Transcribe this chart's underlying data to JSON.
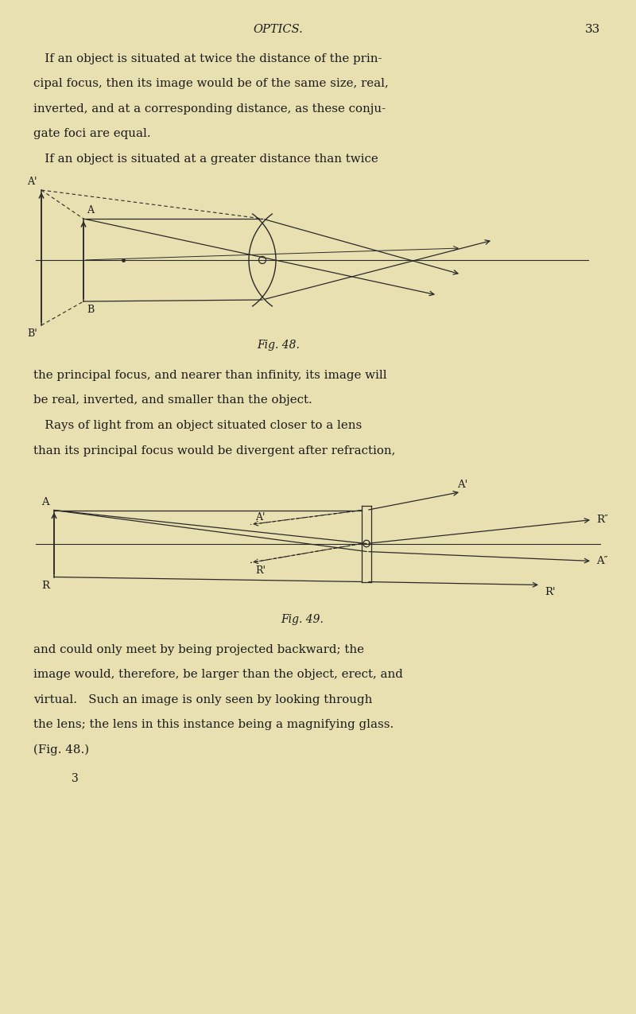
{
  "bg_color": "#e8e0b0",
  "text_color": "#1a1a1a",
  "line_color": "#2a2a2a",
  "page_width": 8.0,
  "page_height": 12.75,
  "header_optics": "OPTICS.",
  "page_number": "33",
  "fig48_caption": "Fig. 48.",
  "fig49_caption": "Fig. 49.",
  "footnote": "3"
}
